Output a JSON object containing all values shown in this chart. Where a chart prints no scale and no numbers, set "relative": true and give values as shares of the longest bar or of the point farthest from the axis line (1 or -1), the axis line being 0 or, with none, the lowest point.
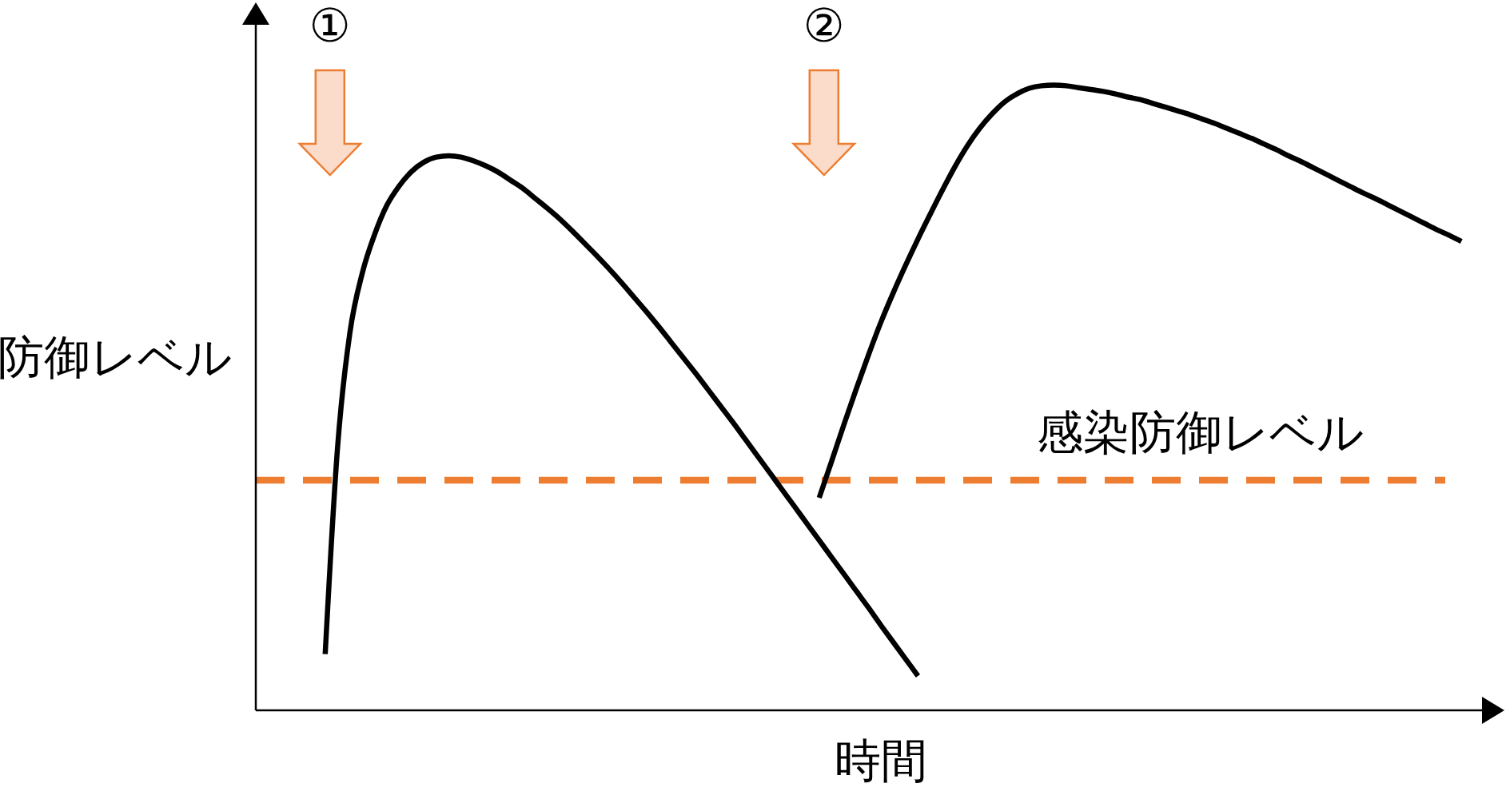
{
  "chart_data": {
    "type": "line",
    "relative": true,
    "xlabel": "時間",
    "ylabel": "防御レベル",
    "line_style": "solid",
    "categories": [
      null,
      null,
      null,
      null,
      null,
      null,
      null,
      null,
      null,
      null,
      null,
      null,
      null,
      null,
      null,
      null,
      null,
      null,
      null,
      null,
      null,
      null,
      null,
      null,
      null,
      null,
      null,
      null,
      null,
      null,
      null,
      null,
      null,
      null,
      null,
      null,
      null,
      null,
      null,
      null,
      null,
      null,
      null,
      null,
      null,
      null,
      null,
      null,
      null,
      null,
      null,
      null,
      null,
      null,
      null,
      null,
      null,
      null,
      null,
      null,
      null,
      null,
      null,
      null,
      null,
      null,
      null,
      null,
      null,
      null,
      null,
      null,
      null,
      null,
      null,
      null,
      null,
      null,
      null,
      null,
      null,
      null,
      null,
      null,
      null,
      null,
      null,
      null,
      null,
      null,
      null,
      null,
      null
    ],
    "series": [
      {
        "color": "#000000",
        "values": [
          0.09,
          0.42,
          0.604,
          0.699,
          0.761,
          0.808,
          0.839,
          0.862,
          0.877,
          0.885,
          0.887,
          0.885,
          0.879,
          0.871,
          0.861,
          0.848,
          0.835,
          0.819,
          0.803,
          0.786,
          0.767,
          0.747,
          0.727,
          0.706,
          0.684,
          0.661,
          0.638,
          0.614,
          0.589,
          0.564,
          0.539,
          0.513,
          0.487,
          0.461,
          0.434,
          0.407,
          0.38,
          0.353,
          0.326,
          0.299,
          0.272,
          0.245,
          0.218,
          0.191,
          0.164,
          0.136,
          0.109,
          0.082,
          0.055,
          null,
          null,
          null,
          null,
          null,
          null,
          null,
          null,
          null,
          null,
          null,
          null,
          null,
          null,
          null,
          null,
          null,
          null,
          null,
          null,
          null,
          null,
          null,
          null,
          null,
          null,
          null,
          null,
          null,
          null,
          null,
          null,
          null,
          null,
          null,
          null,
          null,
          null,
          null,
          null,
          null,
          null,
          null,
          null
        ]
      },
      {
        "color": "#000000",
        "values": [
          null,
          null,
          null,
          null,
          null,
          null,
          null,
          null,
          null,
          null,
          null,
          null,
          null,
          null,
          null,
          null,
          null,
          null,
          null,
          null,
          null,
          null,
          null,
          null,
          null,
          null,
          null,
          null,
          null,
          null,
          null,
          null,
          null,
          null,
          null,
          null,
          null,
          null,
          null,
          null,
          0.34,
          0.398,
          0.457,
          0.514,
          0.569,
          0.621,
          0.668,
          0.712,
          0.754,
          0.794,
          0.833,
          0.87,
          0.903,
          0.931,
          0.954,
          0.973,
          0.986,
          0.995,
          0.999,
          1,
          0.999,
          0.996,
          0.993,
          0.99,
          0.986,
          0.981,
          0.977,
          0.971,
          0.965,
          0.959,
          0.953,
          0.946,
          0.939,
          0.931,
          0.923,
          0.915,
          0.906,
          0.897,
          0.887,
          0.878,
          0.868,
          0.858,
          0.848,
          0.838,
          0.828,
          0.819,
          0.809,
          0.799,
          0.789,
          0.779,
          0.769,
          0.76,
          0.75
        ]
      }
    ],
    "ref_lines": [
      {
        "axis": "y",
        "value": 0.368,
        "label": "感染防御レベル",
        "color": "#ed7d31",
        "line_style": "dashed"
      }
    ],
    "annotations": [
      "①",
      "②"
    ]
  }
}
